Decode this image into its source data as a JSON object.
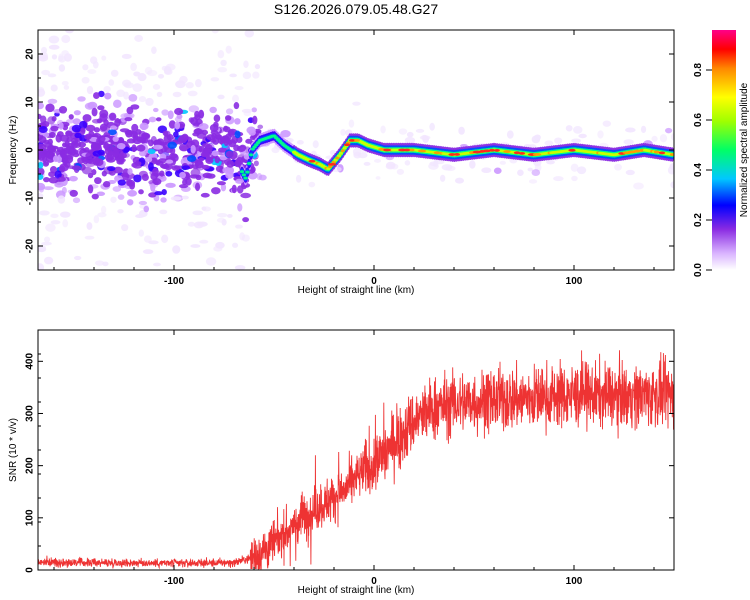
{
  "title": "S126.2026.079.05.48.G27",
  "chart_data": [
    {
      "type": "heatmap",
      "xlabel": "Height of straight line (km)",
      "ylabel": "Frequency (Hz)",
      "xlim": [
        -168,
        150
      ],
      "ylim": [
        -25,
        25
      ],
      "xticks": [
        -100,
        0,
        100
      ],
      "yticks": [
        -20,
        -10,
        0,
        10,
        20
      ],
      "colorbar": {
        "label": "Normalized spectral amplitude",
        "range": [
          0.0,
          0.96
        ],
        "ticks": [
          0.0,
          0.2,
          0.4,
          0.6,
          0.8
        ]
      },
      "signal_track": [
        [
          -168,
          2
        ],
        [
          -150,
          0
        ],
        [
          -130,
          0
        ],
        [
          -110,
          -1
        ],
        [
          -90,
          0
        ],
        [
          -75,
          0
        ],
        [
          -68,
          -3
        ],
        [
          -64,
          -6
        ],
        [
          -61,
          0
        ],
        [
          -57,
          2
        ],
        [
          -50,
          3
        ],
        [
          -45,
          1
        ],
        [
          -38,
          -1
        ],
        [
          -33,
          -2
        ],
        [
          -27,
          -3
        ],
        [
          -23,
          -4
        ],
        [
          -17,
          -1
        ],
        [
          -12,
          2
        ],
        [
          -8,
          2
        ],
        [
          -3,
          1
        ],
        [
          5,
          0
        ],
        [
          20,
          0
        ],
        [
          40,
          -1
        ],
        [
          60,
          0
        ],
        [
          80,
          -1
        ],
        [
          100,
          0
        ],
        [
          120,
          -1
        ],
        [
          135,
          0
        ],
        [
          150,
          -1
        ]
      ]
    },
    {
      "type": "line",
      "xlabel": "Height of straight line (km)",
      "ylabel": "SNR (10 * v/v)",
      "xlim": [
        -168,
        150
      ],
      "ylim": [
        0,
        460
      ],
      "xticks": [
        -100,
        0,
        100
      ],
      "yticks": [
        0,
        100,
        200,
        300,
        400
      ],
      "color": "#ee3333",
      "profile": [
        [
          -168,
          15
        ],
        [
          -100,
          13
        ],
        [
          -70,
          14
        ],
        [
          -60,
          25
        ],
        [
          -50,
          50
        ],
        [
          -42,
          80
        ],
        [
          -35,
          105
        ],
        [
          -28,
          120
        ],
        [
          -20,
          140
        ],
        [
          -14,
          155
        ],
        [
          -5,
          190
        ],
        [
          0,
          205
        ],
        [
          10,
          245
        ],
        [
          20,
          285
        ],
        [
          30,
          310
        ],
        [
          40,
          320
        ],
        [
          60,
          325
        ],
        [
          80,
          330
        ],
        [
          100,
          335
        ],
        [
          120,
          335
        ],
        [
          150,
          335
        ]
      ]
    }
  ]
}
